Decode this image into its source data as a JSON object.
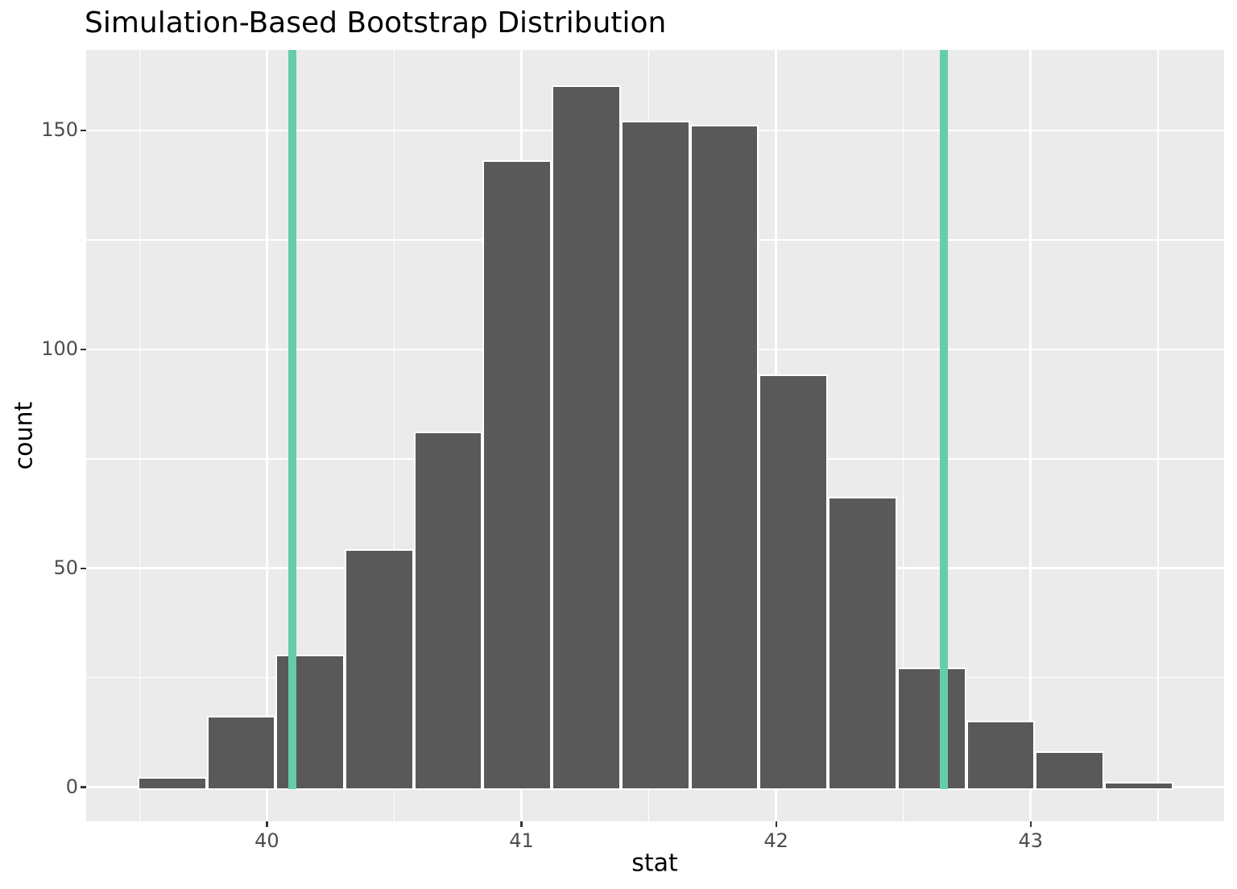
{
  "chart_data": {
    "type": "histogram",
    "title": "Simulation-Based Bootstrap Distribution",
    "xlabel": "stat",
    "ylabel": "count",
    "x_ticks": [
      40,
      41,
      42,
      43
    ],
    "y_ticks": [
      0,
      50,
      100,
      150
    ],
    "x_minor_gridlines": [
      39.5,
      40.5,
      41.5,
      42.5,
      43.5
    ],
    "y_minor_gridlines": [
      25,
      75,
      125
    ],
    "xlim": [
      39.29,
      43.76
    ],
    "ylim": [
      -7.8,
      168.4
    ],
    "bins": {
      "start": 39.492,
      "width": 0.2712
    },
    "counts": [
      2,
      16,
      30,
      54,
      81,
      143,
      160,
      152,
      151,
      94,
      66,
      27,
      15,
      8,
      1
    ],
    "ci_endpoints": [
      40.1,
      42.66
    ],
    "legend": "none",
    "grid": "on",
    "colors": {
      "bar_fill": "#595959",
      "bar_stroke": "#FFFFFF",
      "panel_bg": "#EBEBEB",
      "gridline": "#FFFFFF",
      "ci_line": "#66CDAA",
      "tick_mark": "#333333",
      "tick_label": "#4D4D4D",
      "axis_title": "#000000",
      "title": "#000000"
    }
  }
}
